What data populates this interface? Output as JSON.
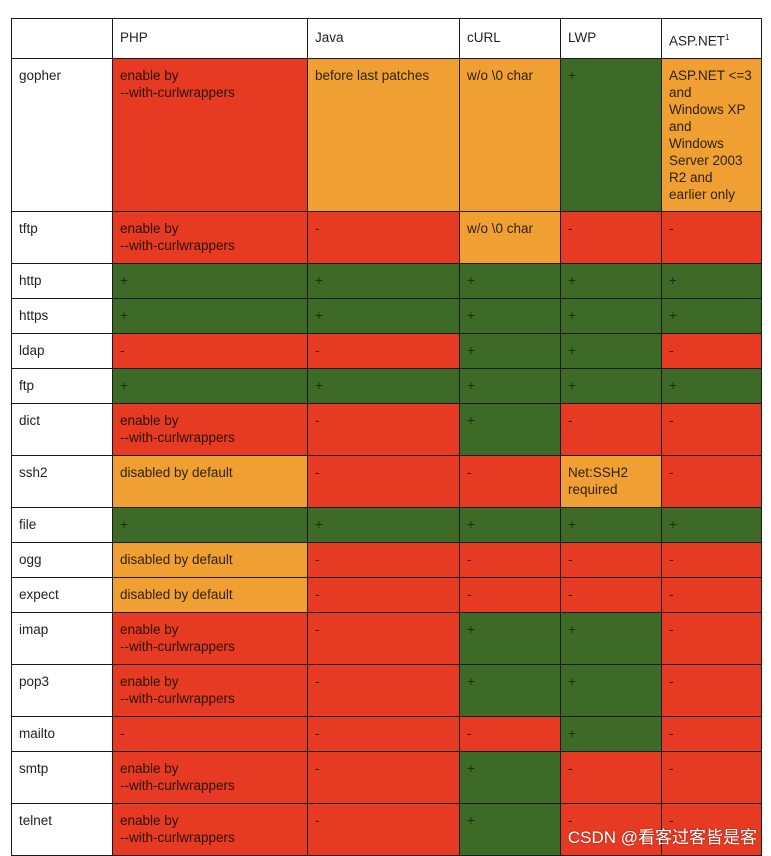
{
  "table": {
    "corner": "",
    "columns": [
      "PHP",
      "Java",
      "cURL",
      "LWP",
      "ASP.NET"
    ],
    "asp_footnote_mark": "1",
    "rows": [
      {
        "protocol": "gopher",
        "cells": [
          {
            "text": "enable by\n--with-curlwrappers",
            "status": "r"
          },
          {
            "text": "before last patches",
            "status": "o"
          },
          {
            "text": "w/o \\0 char",
            "status": "o"
          },
          {
            "text": "+",
            "status": "g"
          },
          {
            "text": "ASP.NET <=3\nand\nWindows XP\nand\nWindows\nServer 2003\nR2 and\nearlier only",
            "status": "o"
          }
        ]
      },
      {
        "protocol": "tftp",
        "cells": [
          {
            "text": "enable by\n--with-curlwrappers",
            "status": "r"
          },
          {
            "text": "-",
            "status": "r"
          },
          {
            "text": "w/o \\0 char",
            "status": "o"
          },
          {
            "text": "-",
            "status": "r"
          },
          {
            "text": "-",
            "status": "r"
          }
        ]
      },
      {
        "protocol": "http",
        "cells": [
          {
            "text": "+",
            "status": "g"
          },
          {
            "text": "+",
            "status": "g"
          },
          {
            "text": "+",
            "status": "g"
          },
          {
            "text": "+",
            "status": "g"
          },
          {
            "text": "+",
            "status": "g"
          }
        ]
      },
      {
        "protocol": "https",
        "cells": [
          {
            "text": "+",
            "status": "g"
          },
          {
            "text": "+",
            "status": "g"
          },
          {
            "text": "+",
            "status": "g"
          },
          {
            "text": "+",
            "status": "g"
          },
          {
            "text": "+",
            "status": "g"
          }
        ]
      },
      {
        "protocol": "ldap",
        "cells": [
          {
            "text": "-",
            "status": "r"
          },
          {
            "text": "-",
            "status": "r"
          },
          {
            "text": "+",
            "status": "g"
          },
          {
            "text": "+",
            "status": "g"
          },
          {
            "text": "-",
            "status": "r"
          }
        ]
      },
      {
        "protocol": "ftp",
        "cells": [
          {
            "text": "+",
            "status": "g"
          },
          {
            "text": "+",
            "status": "g"
          },
          {
            "text": "+",
            "status": "g"
          },
          {
            "text": "+",
            "status": "g"
          },
          {
            "text": "+",
            "status": "g"
          }
        ]
      },
      {
        "protocol": "dict",
        "cells": [
          {
            "text": "enable by\n--with-curlwrappers",
            "status": "r"
          },
          {
            "text": "-",
            "status": "r"
          },
          {
            "text": "+",
            "status": "g"
          },
          {
            "text": "-",
            "status": "r"
          },
          {
            "text": "-",
            "status": "r"
          }
        ]
      },
      {
        "protocol": "ssh2",
        "cells": [
          {
            "text": "disabled by default",
            "status": "o"
          },
          {
            "text": "-",
            "status": "r"
          },
          {
            "text": "-",
            "status": "r"
          },
          {
            "text": "Net:SSH2\nrequired",
            "status": "o"
          },
          {
            "text": "-",
            "status": "r"
          }
        ]
      },
      {
        "protocol": "file",
        "cells": [
          {
            "text": "+",
            "status": "g"
          },
          {
            "text": "+",
            "status": "g"
          },
          {
            "text": "+",
            "status": "g"
          },
          {
            "text": "+",
            "status": "g"
          },
          {
            "text": "+",
            "status": "g"
          }
        ]
      },
      {
        "protocol": "ogg",
        "cells": [
          {
            "text": "disabled by default",
            "status": "o"
          },
          {
            "text": "-",
            "status": "r"
          },
          {
            "text": "-",
            "status": "r"
          },
          {
            "text": "-",
            "status": "r"
          },
          {
            "text": "-",
            "status": "r"
          }
        ]
      },
      {
        "protocol": "expect",
        "cells": [
          {
            "text": "disabled by default",
            "status": "o"
          },
          {
            "text": "-",
            "status": "r"
          },
          {
            "text": "-",
            "status": "r"
          },
          {
            "text": "-",
            "status": "r"
          },
          {
            "text": "-",
            "status": "r"
          }
        ]
      },
      {
        "protocol": "imap",
        "cells": [
          {
            "text": "enable by\n--with-curlwrappers",
            "status": "r"
          },
          {
            "text": "-",
            "status": "r"
          },
          {
            "text": "+",
            "status": "g"
          },
          {
            "text": "+",
            "status": "g"
          },
          {
            "text": "-",
            "status": "r"
          }
        ]
      },
      {
        "protocol": "pop3",
        "cells": [
          {
            "text": "enable by\n--with-curlwrappers",
            "status": "r"
          },
          {
            "text": "-",
            "status": "r"
          },
          {
            "text": "+",
            "status": "g"
          },
          {
            "text": "+",
            "status": "g"
          },
          {
            "text": "-",
            "status": "r"
          }
        ]
      },
      {
        "protocol": "mailto",
        "cells": [
          {
            "text": "-",
            "status": "r"
          },
          {
            "text": "-",
            "status": "r"
          },
          {
            "text": "-",
            "status": "r"
          },
          {
            "text": "+",
            "status": "g"
          },
          {
            "text": "-",
            "status": "r"
          }
        ]
      },
      {
        "protocol": "smtp",
        "cells": [
          {
            "text": "enable by\n--with-curlwrappers",
            "status": "r"
          },
          {
            "text": "-",
            "status": "r"
          },
          {
            "text": "+",
            "status": "g"
          },
          {
            "text": "-",
            "status": "r"
          },
          {
            "text": "-",
            "status": "r"
          }
        ]
      },
      {
        "protocol": "telnet",
        "cells": [
          {
            "text": "enable by\n--with-curlwrappers",
            "status": "r"
          },
          {
            "text": "-",
            "status": "r"
          },
          {
            "text": "+",
            "status": "g"
          },
          {
            "text": "-",
            "status": "r"
          },
          {
            "text": "-",
            "status": "r"
          }
        ]
      }
    ]
  },
  "colors": {
    "supported": "#3d6b27",
    "partial": "#f0a032",
    "unsupported": "#e63a23"
  },
  "watermark": "CSDN @看客过客皆是客"
}
